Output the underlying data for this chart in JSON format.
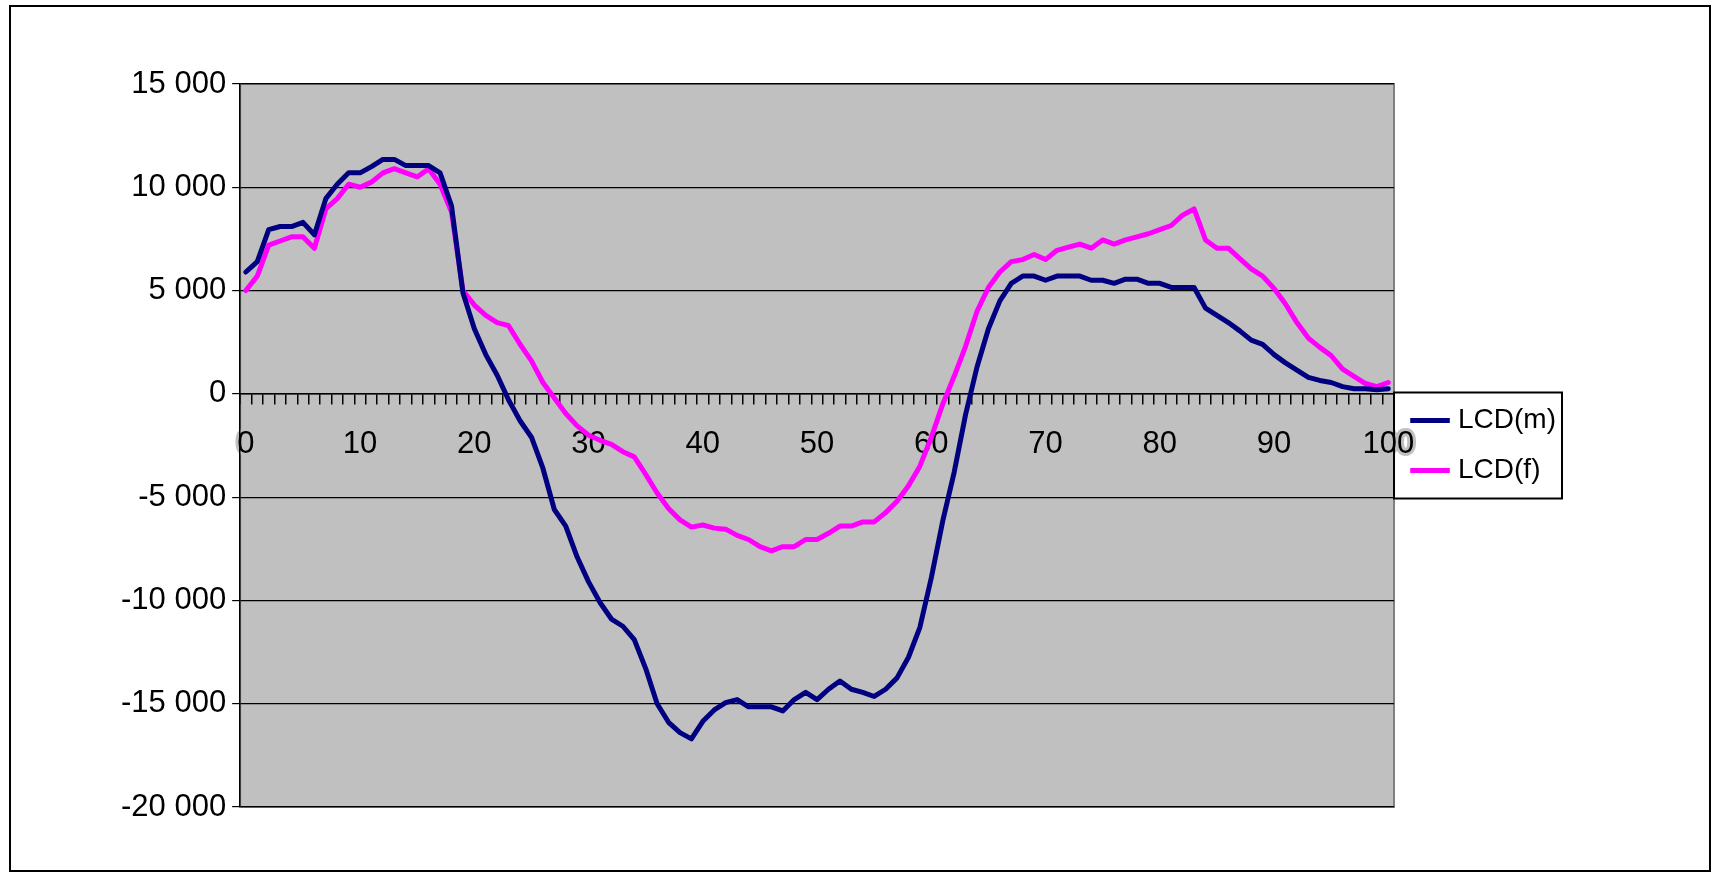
{
  "chart_data": {
    "type": "line",
    "categories": [
      "0",
      null,
      null,
      null,
      null,
      null,
      null,
      null,
      null,
      null,
      "10",
      null,
      null,
      null,
      null,
      null,
      null,
      null,
      null,
      null,
      "20",
      null,
      null,
      null,
      null,
      null,
      null,
      null,
      null,
      null,
      "30",
      null,
      null,
      null,
      null,
      null,
      null,
      null,
      null,
      null,
      "40",
      null,
      null,
      null,
      null,
      null,
      null,
      null,
      null,
      null,
      "50",
      null,
      null,
      null,
      null,
      null,
      null,
      null,
      null,
      null,
      "60",
      null,
      null,
      null,
      null,
      null,
      null,
      null,
      null,
      null,
      "70",
      null,
      null,
      null,
      null,
      null,
      null,
      null,
      null,
      null,
      "80",
      null,
      null,
      null,
      null,
      null,
      null,
      null,
      null,
      null,
      "90",
      null,
      null,
      null,
      null,
      null,
      null,
      null,
      null,
      null,
      "100"
    ],
    "series": [
      {
        "name": "LCD(m)",
        "color": "#000080",
        "values": [
          5900,
          6400,
          7950,
          8100,
          8100,
          8300,
          7700,
          9450,
          10150,
          10700,
          10700,
          11000,
          11350,
          11350,
          11050,
          11050,
          11050,
          10700,
          9100,
          4900,
          3150,
          1900,
          900,
          -300,
          -1300,
          -2100,
          -3600,
          -5600,
          -6400,
          -7900,
          -9100,
          -10100,
          -10900,
          -11250,
          -11900,
          -13300,
          -15000,
          -15900,
          -16400,
          -16700,
          -15850,
          -15300,
          -14950,
          -14800,
          -15150,
          -15150,
          -15150,
          -15350,
          -14800,
          -14450,
          -14800,
          -14300,
          -13900,
          -14300,
          -14450,
          -14650,
          -14300,
          -13750,
          -12750,
          -11300,
          -8900,
          -6150,
          -3800,
          -1000,
          1300,
          3150,
          4500,
          5350,
          5700,
          5700,
          5500,
          5700,
          5700,
          5700,
          5500,
          5500,
          5350,
          5550,
          5550,
          5350,
          5350,
          5150,
          5150,
          5150,
          4150,
          3800,
          3450,
          3050,
          2600,
          2400,
          1900,
          1500,
          1150,
          800,
          650,
          550,
          350,
          250,
          250,
          200,
          250
        ]
      },
      {
        "name": "LCD(f)",
        "color": "#ff00ff",
        "values": [
          5000,
          5700,
          7200,
          7400,
          7600,
          7600,
          7050,
          8950,
          9450,
          10150,
          10000,
          10250,
          10700,
          10900,
          10700,
          10500,
          10900,
          10150,
          8800,
          5000,
          4300,
          3800,
          3450,
          3300,
          2400,
          1600,
          550,
          -200,
          -950,
          -1550,
          -2000,
          -2250,
          -2450,
          -2800,
          -3050,
          -3900,
          -4800,
          -5550,
          -6100,
          -6450,
          -6350,
          -6500,
          -6550,
          -6850,
          -7050,
          -7400,
          -7600,
          -7400,
          -7400,
          -7050,
          -7050,
          -6750,
          -6400,
          -6400,
          -6200,
          -6200,
          -5750,
          -5200,
          -4450,
          -3500,
          -2100,
          -500,
          850,
          2300,
          4000,
          5150,
          5900,
          6400,
          6500,
          6750,
          6500,
          6950,
          7100,
          7250,
          7050,
          7450,
          7250,
          7450,
          7600,
          7750,
          7950,
          8150,
          8650,
          8950,
          7450,
          7050,
          7050,
          6550,
          6050,
          5700,
          5100,
          4350,
          3450,
          2700,
          2250,
          1850,
          1200,
          850,
          500,
          350,
          550
        ]
      }
    ],
    "ylim": [
      -20000,
      15000
    ],
    "yticks": [
      {
        "value": -20000,
        "label": "-20 000"
      },
      {
        "value": -15000,
        "label": "-15 000"
      },
      {
        "value": -10000,
        "label": "-10 000"
      },
      {
        "value": -5000,
        "label": "-5 000"
      },
      0,
      {
        "value": 5000,
        "label": "5 000"
      },
      {
        "value": 10000,
        "label": "10 000"
      },
      {
        "value": 15000,
        "label": "15 000"
      }
    ],
    "grid": "y",
    "legend": "right",
    "marker": "none",
    "line_style": "solid"
  }
}
